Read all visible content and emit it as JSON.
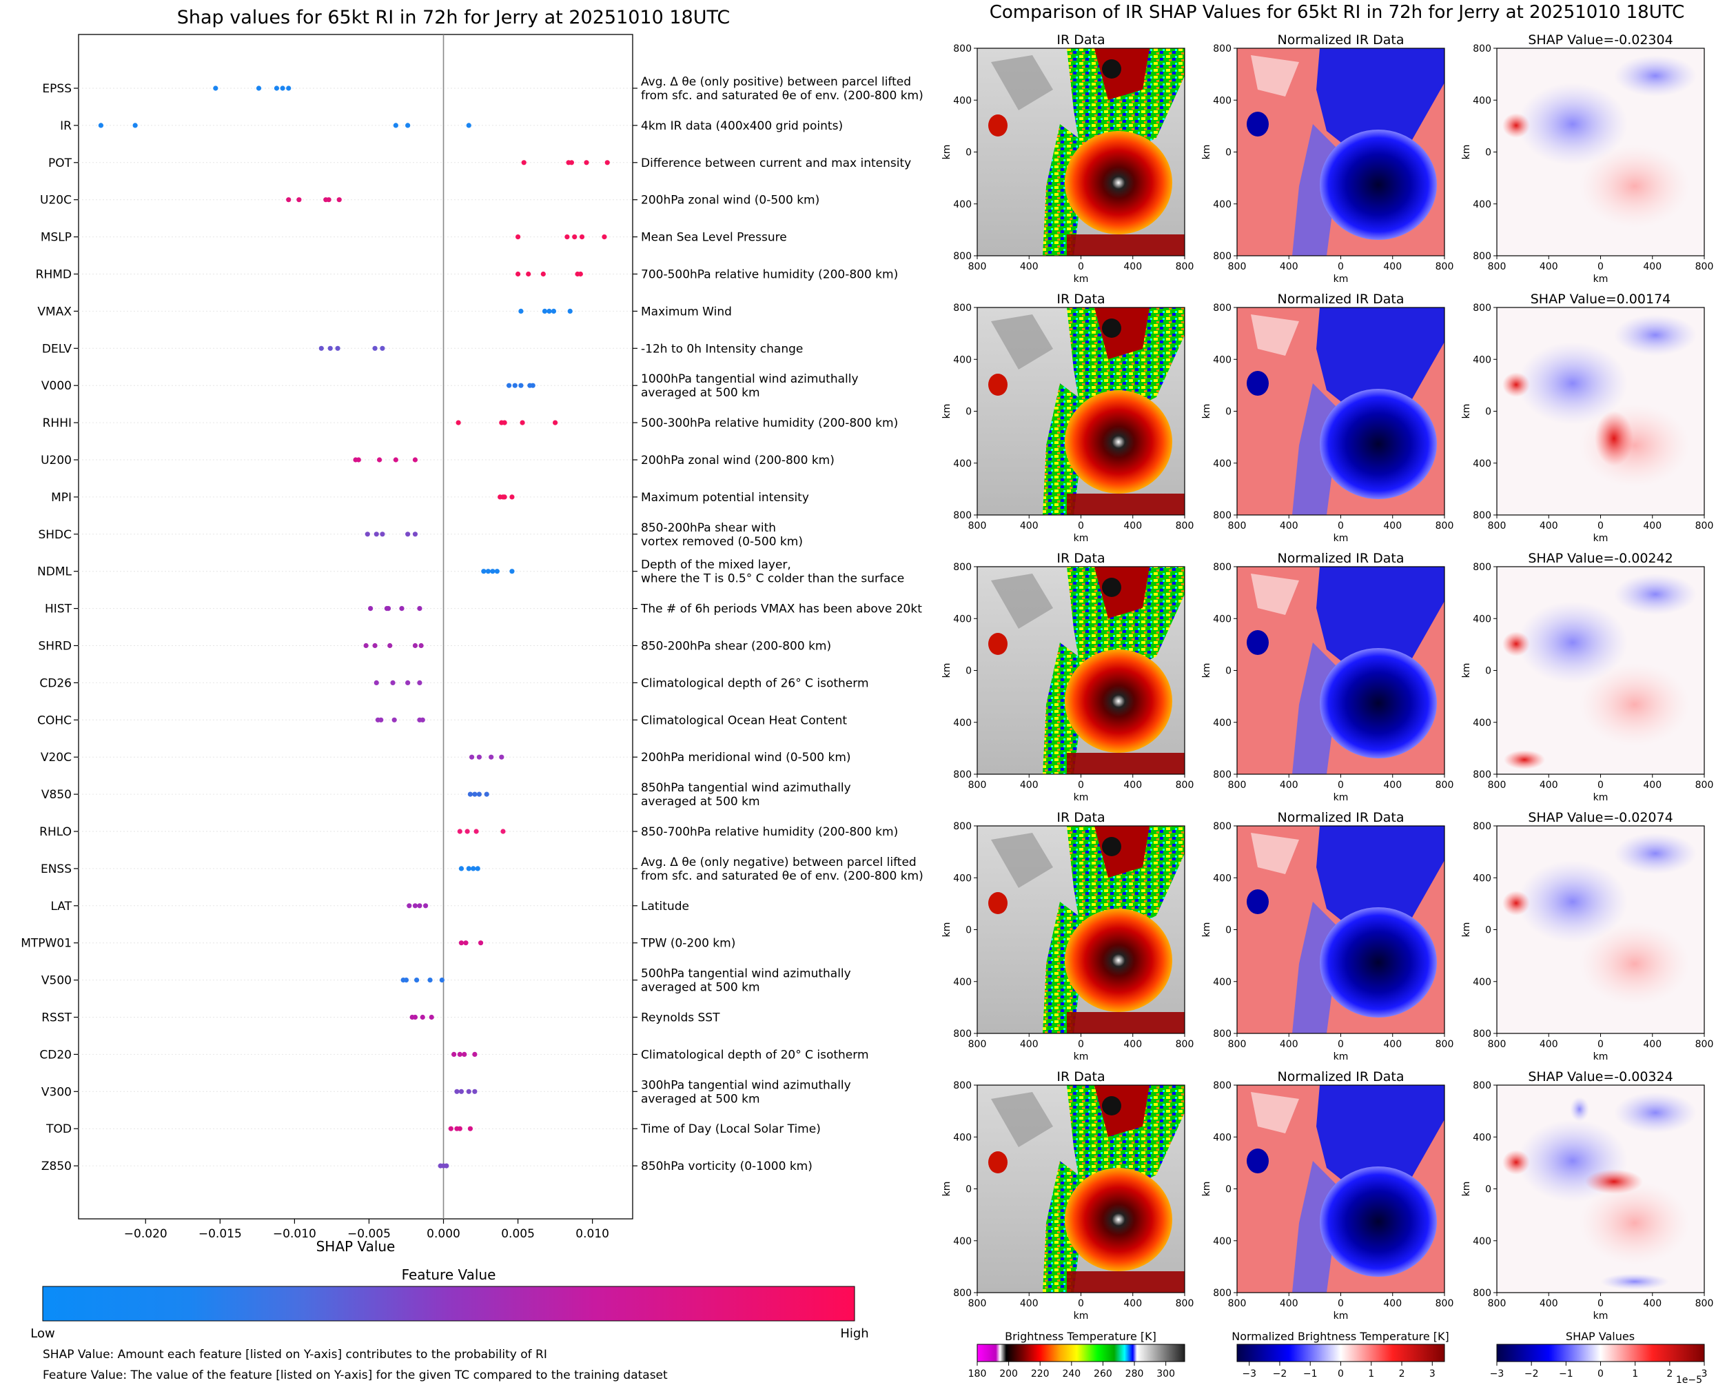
{
  "chart_data": [
    {
      "type": "scatter",
      "title": "Shap values for 65kt RI in 72h for Jerry at 20251010 18UTC",
      "xlabel": "SHAP Value",
      "xlim": [
        -0.0245,
        0.0127
      ],
      "xticks": [
        "−0.020",
        "−0.015",
        "−0.010",
        "−0.005",
        "0.000",
        "0.005",
        "0.010"
      ],
      "xtick_values": [
        -0.02,
        -0.015,
        -0.01,
        -0.005,
        0.0,
        0.005,
        0.01
      ],
      "grid": false,
      "colorbar": {
        "title": "Feature Value",
        "low": "Low",
        "high": "High",
        "colors": [
          "#0c8af7",
          "#8f38c2",
          "#ff0a55"
        ]
      },
      "features": [
        {
          "name": "EPSS",
          "desc": [
            "Avg. Δ θe (only positive) between parcel lifted",
            "from sfc. and saturated θe of env. (200-800 km)"
          ],
          "color": "#1a85f2",
          "values": [
            -0.0153,
            -0.0124,
            -0.0112,
            -0.0108,
            -0.0104
          ]
        },
        {
          "name": "IR",
          "desc": [
            "4km IR data (400x400 grid points)"
          ],
          "color": "#1a85f2",
          "values": [
            -0.023,
            -0.0207,
            -0.0032,
            -0.0024,
            0.0017
          ]
        },
        {
          "name": "POT",
          "desc": [
            "Difference between current and max intensity"
          ],
          "color": "#f5125c",
          "values": [
            0.0054,
            0.0084,
            0.0086,
            0.0096,
            0.011
          ]
        },
        {
          "name": "U20C",
          "desc": [
            "200hPa zonal wind (0-500 km)"
          ],
          "color": "#e0127a",
          "values": [
            -0.0104,
            -0.0097,
            -0.0079,
            -0.0077,
            -0.007
          ]
        },
        {
          "name": "MSLP",
          "desc": [
            "Mean Sea Level Pressure"
          ],
          "color": "#f5125c",
          "values": [
            0.005,
            0.0083,
            0.0088,
            0.0093,
            0.0108
          ]
        },
        {
          "name": "RHMD",
          "desc": [
            "700-500hPa relative humidity (200-800 km)"
          ],
          "color": "#f5125c",
          "values": [
            0.005,
            0.0057,
            0.0067,
            0.009,
            0.0092
          ]
        },
        {
          "name": "VMAX",
          "desc": [
            "Maximum Wind"
          ],
          "color": "#1a85f2",
          "values": [
            0.0052,
            0.0068,
            0.0071,
            0.0074,
            0.0085
          ]
        },
        {
          "name": "DELV",
          "desc": [
            "-12h to 0h Intensity change"
          ],
          "color": "#6a55d0",
          "values": [
            -0.0082,
            -0.0076,
            -0.0071,
            -0.0046,
            -0.0041
          ]
        },
        {
          "name": "V000",
          "desc": [
            "1000hPa tangential wind azimuthally",
            "averaged at 500 km"
          ],
          "color": "#2a78ea",
          "values": [
            0.0044,
            0.0048,
            0.0052,
            0.0058,
            0.006
          ]
        },
        {
          "name": "RHHI",
          "desc": [
            "500-300hPa relative humidity (200-800 km)"
          ],
          "color": "#f5125c",
          "values": [
            0.001,
            0.0039,
            0.0041,
            0.0053,
            0.0075
          ]
        },
        {
          "name": "U200",
          "desc": [
            "200hPa zonal wind (200-800 km)"
          ],
          "color": "#d8128a",
          "values": [
            -0.0059,
            -0.0057,
            -0.0043,
            -0.0032,
            -0.0019
          ]
        },
        {
          "name": "MPI",
          "desc": [
            "Maximum potential intensity"
          ],
          "color": "#f5125c",
          "values": [
            0.0038,
            0.004,
            0.0041,
            0.0046
          ]
        },
        {
          "name": "SHDC",
          "desc": [
            "850-200hPa shear with",
            "vortex removed (0-500 km)"
          ],
          "color": "#7a4bc8",
          "values": [
            -0.0051,
            -0.0045,
            -0.0041,
            -0.0024,
            -0.0019
          ]
        },
        {
          "name": "NDML",
          "desc": [
            "Depth of the mixed layer,",
            "where the T is 0.5° C colder than the surface"
          ],
          "color": "#1a85f2",
          "values": [
            0.0027,
            0.003,
            0.0033,
            0.0036,
            0.0046
          ]
        },
        {
          "name": "HIST",
          "desc": [
            "The # of 6h periods VMAX has been above 20kt"
          ],
          "color": "#9a2ab8",
          "values": [
            -0.0049,
            -0.0038,
            -0.0037,
            -0.0028,
            -0.0016
          ]
        },
        {
          "name": "SHRD",
          "desc": [
            "850-200hPa shear (200-800 km)"
          ],
          "color": "#a528b0",
          "values": [
            -0.0052,
            -0.0046,
            -0.0036,
            -0.0019,
            -0.0015
          ]
        },
        {
          "name": "CD26",
          "desc": [
            "Climatological depth of 26° C isotherm"
          ],
          "color": "#9a35be",
          "values": [
            -0.0045,
            -0.0034,
            -0.0024,
            -0.0016
          ]
        },
        {
          "name": "COHC",
          "desc": [
            "Climatological Ocean Heat Content"
          ],
          "color": "#9a35be",
          "values": [
            -0.0044,
            -0.0042,
            -0.0033,
            -0.0016,
            -0.0014
          ]
        },
        {
          "name": "V20C",
          "desc": [
            "200hPa meridional wind (0-500 km)"
          ],
          "color": "#9a35be",
          "values": [
            0.0019,
            0.0024,
            0.0032,
            0.0039
          ]
        },
        {
          "name": "V850",
          "desc": [
            "850hPa tangential wind azimuthally",
            "averaged at 500 km"
          ],
          "color": "#3a6ee0",
          "values": [
            0.0018,
            0.0021,
            0.0024,
            0.0029
          ]
        },
        {
          "name": "RHLO",
          "desc": [
            "850-700hPa relative humidity (200-800 km)"
          ],
          "color": "#f01a78",
          "values": [
            0.0011,
            0.0016,
            0.0022,
            0.004
          ]
        },
        {
          "name": "ENSS",
          "desc": [
            "Avg. Δ θe (only negative) between parcel lifted",
            "from sfc. and saturated θe of env. (200-800 km)"
          ],
          "color": "#1a85f2",
          "values": [
            0.0012,
            0.0017,
            0.002,
            0.0023
          ]
        },
        {
          "name": "LAT",
          "desc": [
            "Latitude"
          ],
          "color": "#a02ab8",
          "values": [
            -0.0023,
            -0.0019,
            -0.0016,
            -0.0012
          ]
        },
        {
          "name": "MTPW01",
          "desc": [
            "TPW (0-200 km)"
          ],
          "color": "#d8128a",
          "values": [
            0.0012,
            0.0015,
            0.0025
          ]
        },
        {
          "name": "V500",
          "desc": [
            "500hPa tangential wind azimuthally",
            "averaged at 500 km"
          ],
          "color": "#2a78ea",
          "values": [
            -0.0027,
            -0.0025,
            -0.0018,
            -0.0009,
            -0.0001
          ]
        },
        {
          "name": "RSST",
          "desc": [
            "Reynolds SST"
          ],
          "color": "#b81aa8",
          "values": [
            -0.0021,
            -0.0019,
            -0.0014,
            -0.0008
          ]
        },
        {
          "name": "CD20",
          "desc": [
            "Climatological depth of 20° C isotherm"
          ],
          "color": "#c01aa0",
          "values": [
            0.0007,
            0.0011,
            0.0014,
            0.0021
          ]
        },
        {
          "name": "V300",
          "desc": [
            "300hPa tangential wind azimuthally",
            "averaged at 500 km"
          ],
          "color": "#7a4bc8",
          "values": [
            0.0009,
            0.0012,
            0.0017,
            0.0021
          ]
        },
        {
          "name": "TOD",
          "desc": [
            "Time of Day (Local Solar Time)"
          ],
          "color": "#d8128a",
          "values": [
            0.0005,
            0.0009,
            0.0011,
            0.0018
          ]
        },
        {
          "name": "Z850",
          "desc": [
            "850hPa vorticity (0-1000 km)"
          ],
          "color": "#7a4bc8",
          "values": [
            -0.0002,
            0.0,
            0.0002
          ]
        }
      ]
    },
    {
      "type": "heatmap",
      "title": "Comparison of IR SHAP Values for 65kt RI in 72h for Jerry at 20251010 18UTC",
      "ticks": [
        "800",
        "400",
        "0",
        "400",
        "800"
      ],
      "axis_label": "km",
      "rows": [
        {
          "titles": [
            "IR Data",
            "Normalized IR Data",
            "SHAP Value=-0.02304"
          ]
        },
        {
          "titles": [
            "IR Data",
            "Normalized IR Data",
            "SHAP Value=0.00174"
          ]
        },
        {
          "titles": [
            "IR Data",
            "Normalized IR Data",
            "SHAP Value=-0.00242"
          ]
        },
        {
          "titles": [
            "IR Data",
            "Normalized IR Data",
            "SHAP Value=-0.02074"
          ]
        },
        {
          "titles": [
            "IR Data",
            "Normalized IR Data",
            "SHAP Value=-0.00324"
          ]
        }
      ],
      "colorbars": [
        {
          "title": "Brightness Temperature [K]",
          "ticks": [
            "180",
            "200",
            "220",
            "240",
            "260",
            "280",
            "300"
          ],
          "range": [
            180,
            312
          ],
          "tick_values": [
            180,
            200,
            220,
            240,
            260,
            280,
            300
          ]
        },
        {
          "title": "Normalized Brightness Temperature [K]",
          "ticks": [
            "−3",
            "−2",
            "−1",
            "0",
            "1",
            "2",
            "3"
          ],
          "range": [
            -3.4,
            3.4
          ],
          "tick_values": [
            -3,
            -2,
            -1,
            0,
            1,
            2,
            3
          ]
        },
        {
          "title": "SHAP Values",
          "ticks": [
            "−3",
            "−2",
            "−1",
            "0",
            "1",
            "2",
            "3"
          ],
          "range": [
            -3,
            3
          ],
          "tick_values": [
            -3,
            -2,
            -1,
            0,
            1,
            2,
            3
          ],
          "offset_text": "1e−5"
        }
      ]
    }
  ],
  "footnotes": {
    "shap": "SHAP Value: Amount each feature [listed on Y-axis] contributes to the probability of RI",
    "feature": "Feature Value: The value of the feature [listed on Y-axis] for the given TC compared to the training dataset"
  }
}
